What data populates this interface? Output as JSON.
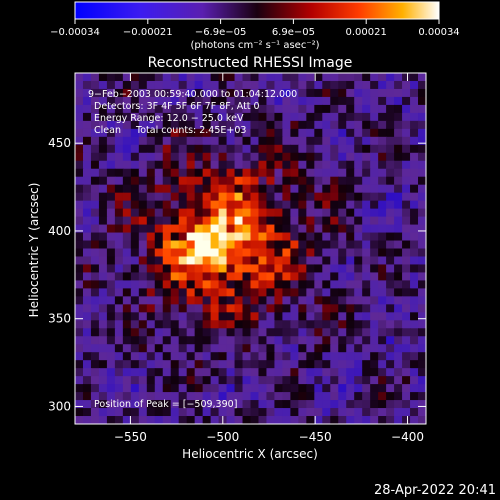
{
  "chart_data": {
    "type": "heatmap",
    "title": "Reconstructed RHESSI Image",
    "xlabel": "Heliocentric X (arcsec)",
    "ylabel": "Heliocentric Y (arcsec)",
    "xlim": [
      -580,
      -390
    ],
    "ylim": [
      290,
      490
    ],
    "xticks": [
      -550,
      -500,
      -450,
      -400
    ],
    "xtick_labels": [
      "−550",
      "−500",
      "−450",
      "−400"
    ],
    "yticks": [
      300,
      350,
      400,
      450
    ],
    "ytick_labels": [
      "300",
      "350",
      "400",
      "450"
    ],
    "colorbar": {
      "range": [
        -0.00034,
        0.00034
      ],
      "tick_labels": [
        "−0.00034",
        "−0.00021",
        "−6.9e−05",
        "6.9e−05",
        "0.00021",
        "0.00034"
      ],
      "unit_label": "(photons cm⁻² s⁻¹ asec⁻²)"
    },
    "annotations": [
      "9−Feb−2003 00:59:40.000 to 01:04:12.000",
      "Detectors: 3F 4F 5F 6F 7F 8F, Att 0",
      "Energy Range: 12.0 − 25.0 keV",
      "Clean     Total counts: 2.45E+03"
    ],
    "peak_label": "Position of Peak = [−509,390]",
    "peak_position": [
      -509,
      390
    ],
    "source_center": [
      -500,
      395
    ]
  },
  "footer": {
    "timestamp": "28-Apr-2022 20:41"
  },
  "colors": {
    "background": "#000000",
    "text": "#ffffff"
  }
}
